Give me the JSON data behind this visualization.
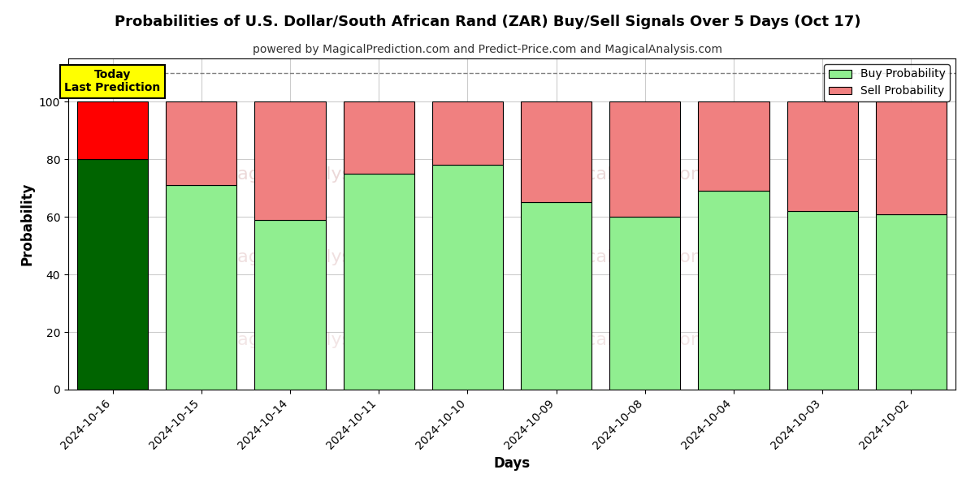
{
  "title": "Probabilities of U.S. Dollar/South African Rand (ZAR) Buy/Sell Signals Over 5 Days (Oct 17)",
  "subtitle": "powered by MagicalPrediction.com and Predict-Price.com and MagicalAnalysis.com",
  "xlabel": "Days",
  "ylabel": "Probability",
  "categories": [
    "2024-10-16",
    "2024-10-15",
    "2024-10-14",
    "2024-10-11",
    "2024-10-10",
    "2024-10-09",
    "2024-10-08",
    "2024-10-04",
    "2024-10-03",
    "2024-10-02"
  ],
  "buy_values": [
    80,
    71,
    59,
    75,
    78,
    65,
    60,
    69,
    62,
    61
  ],
  "sell_values": [
    20,
    29,
    41,
    25,
    22,
    35,
    40,
    31,
    38,
    39
  ],
  "today_buy_color": "#006400",
  "today_sell_color": "#FF0000",
  "other_buy_color": "#90EE90",
  "other_sell_color": "#F08080",
  "bar_edge_color": "#000000",
  "today_annotation_text": "Today\nLast Prediction",
  "today_annotation_bg": "#FFFF00",
  "legend_buy_label": "Buy Probability",
  "legend_sell_label": "Sell Probability",
  "ylim": [
    0,
    115
  ],
  "yticks": [
    0,
    20,
    40,
    60,
    80,
    100
  ],
  "dashed_line_y": 110,
  "grid_color": "#cccccc",
  "figsize": [
    12.0,
    6.0
  ],
  "dpi": 100
}
